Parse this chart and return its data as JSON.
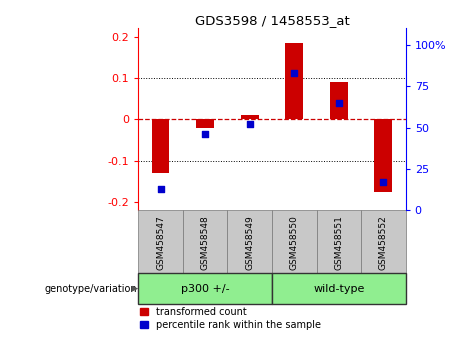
{
  "title": "GDS3598 / 1458553_at",
  "samples": [
    "GSM458547",
    "GSM458548",
    "GSM458549",
    "GSM458550",
    "GSM458551",
    "GSM458552"
  ],
  "transformed_count": [
    -0.13,
    -0.02,
    0.01,
    0.185,
    0.09,
    -0.175
  ],
  "percentile_rank": [
    13,
    46,
    52,
    83,
    65,
    17
  ],
  "group_label_prefix": "genotype/variation",
  "group_defs": [
    {
      "label": "p300 +/-",
      "start": 0,
      "end": 2,
      "color": "#90ee90"
    },
    {
      "label": "wild-type",
      "start": 3,
      "end": 5,
      "color": "#90ee90"
    }
  ],
  "ylim_left": [
    -0.22,
    0.22
  ],
  "ylim_right": [
    0,
    110
  ],
  "yticks_left": [
    -0.2,
    -0.1,
    0,
    0.1,
    0.2
  ],
  "yticks_right": [
    0,
    25,
    50,
    75,
    100
  ],
  "bar_color": "#cc0000",
  "dot_color": "#0000cc",
  "zero_line_color": "#cc0000",
  "grid_color": "#000000",
  "bg_color": "#ffffff",
  "sample_bg": "#c8c8c8",
  "bar_width": 0.4,
  "dot_size": 18
}
